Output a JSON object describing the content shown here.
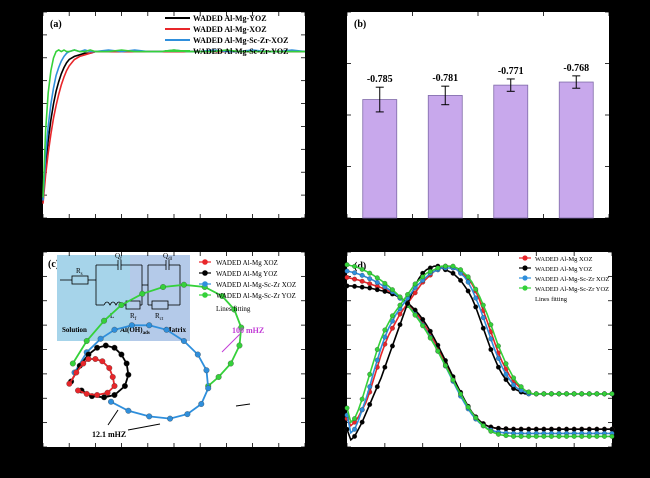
{
  "colors": {
    "background": "#000000",
    "panel_bg": "#ffffff",
    "black_series": "#000000",
    "red_series": "#e8262a",
    "blue_series": "#2f8fdc",
    "green_series": "#35d13a",
    "bar_fill": "#c8a8ec",
    "bar_edge": "#7f6aa8",
    "magenta_annot": "#c23bd6",
    "inset_bg": "#9fd0e6"
  },
  "chart_data": [
    {
      "panel": "(a)",
      "type": "line",
      "title": "",
      "xlabel": "",
      "ylabel": "",
      "grid": false,
      "legend_position": "top-right",
      "x": [
        0,
        1,
        2,
        3,
        4,
        5,
        6,
        7,
        8,
        9,
        10,
        12,
        14,
        16,
        18,
        20,
        25,
        30,
        35,
        40,
        45,
        50,
        55,
        60,
        65,
        70,
        75,
        80,
        85,
        90,
        95,
        100
      ],
      "series": [
        {
          "name": "WADED Al-Mg-YOZ",
          "color_key": "black_series",
          "values": [
            0.05,
            0.28,
            0.44,
            0.57,
            0.67,
            0.75,
            0.81,
            0.86,
            0.9,
            0.93,
            0.95,
            0.97,
            0.98,
            0.99,
            0.99,
            1.0,
            1.0,
            1.0,
            1.0,
            1.0,
            1.0,
            1.0,
            1.0,
            1.0,
            1.0,
            1.0,
            1.0,
            1.0,
            1.0,
            1.0,
            1.0,
            1.0
          ]
        },
        {
          "name": "WADED Al-Mg-XOZ",
          "color_key": "red_series",
          "values": [
            0.04,
            0.22,
            0.36,
            0.48,
            0.58,
            0.66,
            0.73,
            0.79,
            0.84,
            0.88,
            0.91,
            0.95,
            0.97,
            0.98,
            0.99,
            1.0,
            1.0,
            1.0,
            1.0,
            1.0,
            1.0,
            1.0,
            1.0,
            1.0,
            1.0,
            1.0,
            1.0,
            1.0,
            1.0,
            1.0,
            1.0,
            1.0
          ]
        },
        {
          "name": "WADED Al-Mg-Sc-Zr-XOZ",
          "color_key": "blue_series",
          "values": [
            0.06,
            0.34,
            0.53,
            0.67,
            0.77,
            0.85,
            0.9,
            0.94,
            0.97,
            0.99,
            1.0,
            1.01,
            1.0,
            1.01,
            1.0,
            1.0,
            1.01,
            1.0,
            1.01,
            1.0,
            1.0,
            1.01,
            1.0,
            1.0,
            1.01,
            1.0,
            1.0,
            1.01,
            1.0,
            1.0,
            1.01,
            1.0
          ]
        },
        {
          "name": "WADED Al-Mg-Sc-Zr-YOZ",
          "color_key": "green_series",
          "values": [
            0.08,
            0.5,
            0.74,
            0.88,
            0.96,
            1.0,
            1.01,
            1.0,
            1.01,
            1.0,
            1.0,
            1.01,
            1.0,
            1.0,
            1.01,
            1.0,
            1.0,
            1.01,
            1.0,
            1.0,
            1.0,
            1.01,
            1.0,
            1.0,
            1.0,
            1.01,
            1.0,
            1.0,
            1.0,
            1.0,
            1.0,
            1.0
          ]
        }
      ],
      "ylim": [
        -0.05,
        1.25
      ],
      "xlim": [
        0,
        100
      ]
    },
    {
      "panel": "(b)",
      "type": "bar",
      "title": "",
      "xlabel": "",
      "ylabel": "",
      "grid": false,
      "categories": [
        "",
        "",
        "",
        ""
      ],
      "values": [
        -0.785,
        -0.781,
        -0.771,
        -0.768
      ],
      "errors": [
        0.012,
        0.009,
        0.006,
        0.006
      ],
      "data_labels": [
        "-0.785",
        "-0.781",
        "-0.771",
        "-0.768"
      ],
      "ylim": [
        -0.9,
        -0.7
      ]
    },
    {
      "panel": "(c)",
      "type": "scatter",
      "title": "",
      "xlabel": "",
      "ylabel": "",
      "grid": false,
      "legend_position": "top-right",
      "legend_fit_label": "Lines fitting",
      "series": [
        {
          "name": "WADED Al-Mg XOZ",
          "color_key": "red_series",
          "x": [
            1.0,
            1.4,
            1.8,
            2.1,
            2.5,
            2.9,
            3.3,
            3.5,
            3.6,
            3.2,
            2.6,
            2.0,
            1.5
          ],
          "y": [
            1.5,
            2.0,
            2.4,
            2.6,
            2.6,
            2.5,
            2.2,
            1.8,
            1.4,
            1.1,
            1.0,
            1.05,
            1.2
          ]
        },
        {
          "name": "WADED Al-Mg YOZ",
          "color_key": "black_series",
          "x": [
            1.1,
            1.6,
            2.1,
            2.6,
            3.1,
            3.6,
            4.0,
            4.3,
            4.4,
            4.2,
            3.6,
            3.0,
            2.3,
            1.7
          ],
          "y": [
            1.6,
            2.3,
            2.8,
            3.1,
            3.2,
            3.1,
            2.8,
            2.4,
            1.9,
            1.4,
            1.0,
            0.9,
            0.95,
            1.2
          ]
        },
        {
          "name": "WADED Al-Mg-Sc-Zr XOZ",
          "color_key": "blue_series",
          "x": [
            1.3,
            2.0,
            2.8,
            3.6,
            4.6,
            5.6,
            6.6,
            7.6,
            8.4,
            8.9,
            9.0,
            8.6,
            7.8,
            6.8,
            5.6,
            4.4,
            3.4
          ],
          "y": [
            2.0,
            2.9,
            3.5,
            3.9,
            4.1,
            4.1,
            3.9,
            3.4,
            2.8,
            2.1,
            1.3,
            0.6,
            0.15,
            -0.05,
            0.05,
            0.3,
            0.7
          ]
        },
        {
          "name": "WADED Al-Mg-Sc-Zr YOZ",
          "color_key": "green_series",
          "x": [
            1.2,
            2.0,
            3.0,
            4.0,
            5.2,
            6.4,
            7.6,
            8.8,
            9.8,
            10.5,
            10.9,
            10.8,
            10.3,
            9.6,
            9.0
          ],
          "y": [
            2.4,
            3.4,
            4.3,
            5.0,
            5.5,
            5.8,
            5.9,
            5.8,
            5.4,
            4.8,
            4.0,
            3.2,
            2.4,
            1.8,
            1.4
          ]
        }
      ],
      "annotations": [
        "100 mHZ",
        "12.1 mHZ"
      ],
      "inset_labels": {
        "rs": "R",
        "rs_sub": "s",
        "qf": "Q",
        "qf_sub": "f",
        "qdl": "Q",
        "qdl_sub": "dl",
        "rf": "R",
        "rf_sub": "f",
        "rct": "R",
        "rct_sub": "ct",
        "l": "L",
        "solution": "Solution",
        "film": "Al(OH)",
        "film_sub": "ads",
        "matrix": "Matrix"
      },
      "xlim": [
        0,
        14
      ],
      "ylim": [
        -1,
        7
      ]
    },
    {
      "panel": "(d)",
      "type": "scatter",
      "title": "",
      "xlabel": "",
      "ylabel": "",
      "grid": false,
      "legend_position": "top-center",
      "legend_fit_label": "Lines fitting",
      "x_log10": [
        -2.0,
        -1.9,
        -1.8,
        -1.7,
        -1.6,
        -1.5,
        -1.4,
        -1.3,
        -1.2,
        -1.1,
        -1.0,
        -0.9,
        -0.8,
        -0.7,
        -0.6,
        -0.5,
        -0.4,
        -0.3,
        -0.2,
        -0.1,
        0.0,
        0.1,
        0.2,
        0.3,
        0.4,
        0.5,
        0.6,
        0.7,
        0.8,
        0.9,
        1.0,
        1.1,
        1.2,
        1.3,
        1.4,
        1.5,
        1.6,
        1.7,
        1.8,
        1.9,
        2.0,
        2.1,
        2.2,
        2.3,
        2.4,
        2.5,
        2.6,
        2.7,
        2.8,
        2.9,
        3.0,
        3.1,
        3.2,
        3.3,
        3.4,
        3.5,
        3.6,
        3.7,
        3.8,
        3.9,
        4.0,
        4.1,
        4.2,
        4.3,
        4.4,
        4.5,
        4.6,
        4.7,
        4.8,
        4.9,
        5.0
      ],
      "series": [
        {
          "name": "WADED Al-Mg XOZ",
          "color_key": "red_series",
          "role": "modulus",
          "values": [
            4.7,
            4.68,
            4.66,
            4.64,
            4.61,
            4.58,
            4.55,
            4.52,
            4.49,
            4.46,
            4.42,
            4.38,
            4.33,
            4.28,
            4.22,
            4.15,
            4.07,
            3.98,
            3.88,
            3.77,
            3.64,
            3.5,
            3.35,
            3.19,
            3.02,
            2.85,
            2.67,
            2.49,
            2.31,
            2.13,
            1.96,
            1.8,
            1.65,
            1.52,
            1.41,
            1.32,
            1.25,
            1.2,
            1.17,
            1.15,
            1.14,
            1.13,
            1.13,
            1.12,
            1.12,
            1.12,
            1.12,
            1.12,
            1.12,
            1.12,
            1.12,
            1.12,
            1.12,
            1.12,
            1.12,
            1.12,
            1.12,
            1.12,
            1.12,
            1.12,
            1.12,
            1.12,
            1.12,
            1.12,
            1.12,
            1.12,
            1.12,
            1.12,
            1.12,
            1.12,
            1.12
          ]
        },
        {
          "name": "WADED Al-Mg YOZ",
          "color_key": "black_series",
          "role": "modulus",
          "values": [
            4.5,
            4.5,
            4.49,
            4.48,
            4.47,
            4.46,
            4.45,
            4.43,
            4.41,
            4.39,
            4.37,
            4.34,
            4.31,
            4.27,
            4.22,
            4.17,
            4.1,
            4.02,
            3.93,
            3.83,
            3.71,
            3.58,
            3.43,
            3.27,
            3.1,
            2.92,
            2.74,
            2.55,
            2.36,
            2.17,
            1.99,
            1.82,
            1.66,
            1.52,
            1.41,
            1.32,
            1.25,
            1.2,
            1.17,
            1.15,
            1.14,
            1.13,
            1.13,
            1.12,
            1.12,
            1.12,
            1.12,
            1.12,
            1.12,
            1.12,
            1.12,
            1.12,
            1.12,
            1.12,
            1.12,
            1.12,
            1.12,
            1.12,
            1.12,
            1.12,
            1.12,
            1.12,
            1.12,
            1.12,
            1.12,
            1.12,
            1.12,
            1.12,
            1.12,
            1.12,
            1.12
          ]
        },
        {
          "name": "WADED Al-Mg-Sc-Zr XOZ",
          "color_key": "blue_series",
          "role": "modulus",
          "values": [
            4.85,
            4.83,
            4.81,
            4.78,
            4.75,
            4.71,
            4.67,
            4.63,
            4.58,
            4.53,
            4.48,
            4.42,
            4.36,
            4.29,
            4.21,
            4.13,
            4.04,
            3.94,
            3.83,
            3.71,
            3.58,
            3.44,
            3.29,
            3.13,
            2.96,
            2.79,
            2.61,
            2.43,
            2.25,
            2.07,
            1.9,
            1.74,
            1.6,
            1.47,
            1.36,
            1.27,
            1.2,
            1.14,
            1.1,
            1.07,
            1.05,
            1.04,
            1.03,
            1.03,
            1.02,
            1.02,
            1.02,
            1.02,
            1.02,
            1.02,
            1.02,
            1.02,
            1.02,
            1.02,
            1.02,
            1.02,
            1.02,
            1.02,
            1.02,
            1.02,
            1.02,
            1.02,
            1.02,
            1.02,
            1.02,
            1.02,
            1.02,
            1.02,
            1.02,
            1.02,
            1.02
          ]
        },
        {
          "name": "WADED Al-Mg-Sc-Zr YOZ",
          "color_key": "green_series",
          "role": "modulus",
          "values": [
            5.0,
            4.98,
            4.96,
            4.93,
            4.89,
            4.85,
            4.8,
            4.75,
            4.69,
            4.63,
            4.56,
            4.49,
            4.41,
            4.33,
            4.24,
            4.14,
            4.04,
            3.93,
            3.81,
            3.69,
            3.56,
            3.42,
            3.27,
            3.12,
            2.96,
            2.79,
            2.62,
            2.45,
            2.28,
            2.11,
            1.95,
            1.79,
            1.64,
            1.51,
            1.39,
            1.29,
            1.2,
            1.13,
            1.07,
            1.03,
            1.0,
            0.98,
            0.97,
            0.96,
            0.95,
            0.95,
            0.95,
            0.95,
            0.95,
            0.95,
            0.95,
            0.95,
            0.95,
            0.95,
            0.95,
            0.95,
            0.95,
            0.95,
            0.95,
            0.95,
            0.95,
            0.95,
            0.95,
            0.95,
            0.95,
            0.95,
            0.95,
            0.95,
            0.95,
            0.95,
            0.95
          ]
        },
        {
          "name": "WADED Al-Mg XOZ",
          "color_key": "red_series",
          "role": "phase",
          "values": [
            -14,
            -18,
            -16,
            -13,
            -9,
            -5,
            1,
            8,
            15,
            22,
            28,
            33,
            37,
            41,
            45,
            48,
            51,
            54,
            57,
            60,
            63,
            65,
            67,
            69,
            70,
            71,
            72,
            72,
            71,
            70,
            69,
            67,
            65,
            62,
            58,
            53,
            47,
            41,
            35,
            29,
            23,
            18,
            14,
            10,
            7,
            5,
            3,
            2,
            1,
            0,
            0,
            0,
            0,
            0,
            0,
            0,
            0,
            0,
            0,
            0,
            0,
            0,
            0,
            0,
            0,
            0,
            0,
            0,
            0,
            0,
            0
          ]
        },
        {
          "name": "WADED Al-Mg YOZ",
          "color_key": "black_series",
          "role": "phase",
          "values": [
            -20,
            -26,
            -24,
            -20,
            -16,
            -11,
            -6,
            -1,
            4,
            9,
            15,
            21,
            27,
            33,
            39,
            45,
            51,
            56,
            61,
            65,
            68,
            70,
            71,
            72,
            72,
            71,
            70,
            69,
            68,
            66,
            64,
            61,
            58,
            54,
            49,
            43,
            37,
            31,
            25,
            20,
            15,
            11,
            8,
            5,
            3,
            2,
            1,
            0,
            0,
            0,
            0,
            0,
            0,
            0,
            0,
            0,
            0,
            0,
            0,
            0,
            0,
            0,
            0,
            0,
            0,
            0,
            0,
            0,
            0,
            0,
            0
          ]
        },
        {
          "name": "WADED Al-Mg-Sc-Zr XOZ",
          "color_key": "blue_series",
          "role": "phase",
          "values": [
            -12,
            -22,
            -20,
            -15,
            -9,
            -3,
            4,
            12,
            19,
            26,
            32,
            37,
            41,
            45,
            48,
            51,
            54,
            57,
            60,
            62,
            64,
            66,
            68,
            69,
            70,
            71,
            71,
            71,
            71,
            70,
            68,
            66,
            63,
            59,
            54,
            49,
            43,
            37,
            31,
            25,
            20,
            15,
            11,
            8,
            5,
            3,
            2,
            1,
            0,
            0,
            0,
            0,
            0,
            0,
            0,
            0,
            0,
            0,
            0,
            0,
            0,
            0,
            0,
            0,
            0,
            0,
            0,
            0,
            0,
            0,
            0
          ]
        },
        {
          "name": "WADED Al-Mg-Sc-Zr YOZ",
          "color_key": "green_series",
          "role": "phase",
          "values": [
            -8,
            -16,
            -14,
            -9,
            -3,
            4,
            11,
            18,
            25,
            31,
            36,
            40,
            44,
            47,
            50,
            53,
            56,
            59,
            62,
            64,
            66,
            68,
            69,
            70,
            71,
            72,
            72,
            72,
            72,
            71,
            70,
            68,
            66,
            63,
            59,
            55,
            50,
            45,
            39,
            33,
            27,
            22,
            17,
            13,
            9,
            6,
            4,
            2,
            1,
            0,
            0,
            0,
            0,
            0,
            0,
            0,
            0,
            0,
            0,
            0,
            0,
            0,
            0,
            0,
            0,
            0,
            0,
            0,
            0,
            0,
            0
          ]
        }
      ],
      "ylim_modulus": [
        0.7,
        5.3
      ],
      "ylim_phase": [
        -30,
        80
      ],
      "xlim_log10": [
        -2.0,
        5.0
      ]
    }
  ]
}
